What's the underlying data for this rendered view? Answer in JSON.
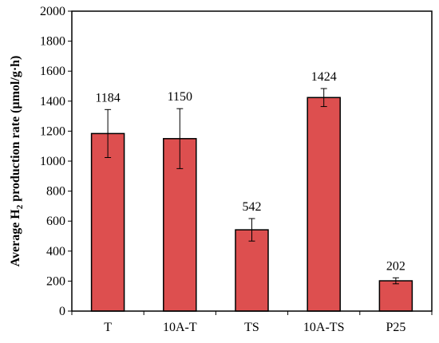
{
  "chart_data": {
    "type": "bar",
    "categories": [
      "T",
      "10A-T",
      "TS",
      "10A-TS",
      "P25"
    ],
    "values": [
      1184,
      1150,
      542,
      1424,
      202
    ],
    "error": [
      160,
      200,
      75,
      60,
      20
    ],
    "data_labels": [
      "1184",
      "1150",
      "542",
      "1424",
      "202"
    ],
    "ylabel_prefix": "Average H",
    "ylabel_subscript": "2",
    "ylabel_suffix": " production rate (µmol/g·h)",
    "xlabel": "",
    "ylim": [
      0,
      2000
    ],
    "yticks": [
      0,
      200,
      400,
      600,
      800,
      1000,
      1200,
      1400,
      1600,
      1800,
      2000
    ],
    "grid": false,
    "legend": "none",
    "bar_color": "#dd4f4f",
    "bar_edge_color": "#000000"
  }
}
